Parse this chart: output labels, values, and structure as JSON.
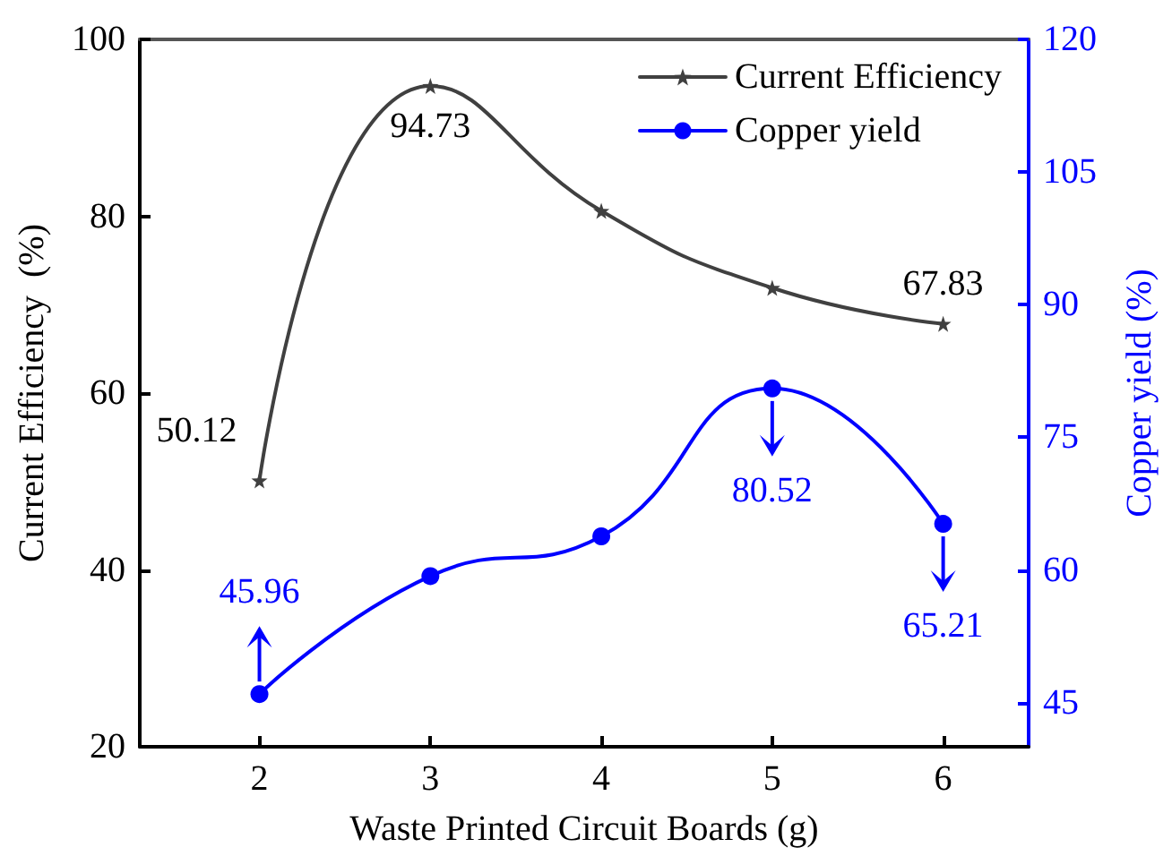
{
  "chart_data": {
    "type": "line",
    "xlabel": "Waste Printed Circuit Boards (g)",
    "ylabel": "Current Efficiency  (%)",
    "y2label": "Copper yield (%)",
    "x": [
      2,
      3,
      4,
      5,
      6
    ],
    "xlim": [
      1.3,
      6.5
    ],
    "xticks": [
      2,
      3,
      4,
      5,
      6
    ],
    "ylim": [
      20,
      100
    ],
    "yticks": [
      20,
      40,
      60,
      80,
      100
    ],
    "y2lim": [
      40,
      120
    ],
    "y2ticks": [
      45,
      60,
      75,
      90,
      105,
      120
    ],
    "series": [
      {
        "name": "Current Efficiency",
        "color": "#404040",
        "marker": "star",
        "values": [
          50.12,
          94.73,
          80.6,
          71.9,
          67.83
        ],
        "value_labels": [
          "50.12",
          "94.73",
          null,
          null,
          "67.83"
        ]
      },
      {
        "name": "Copper yield",
        "color": "#0000ff",
        "marker": "circle",
        "axis": "y2",
        "values": [
          45.96,
          59.3,
          63.8,
          80.52,
          65.21
        ],
        "value_labels": [
          "45.96",
          null,
          null,
          "80.52",
          "65.21"
        ]
      }
    ],
    "legend": "top right",
    "grid": false,
    "line_style": "solid"
  }
}
